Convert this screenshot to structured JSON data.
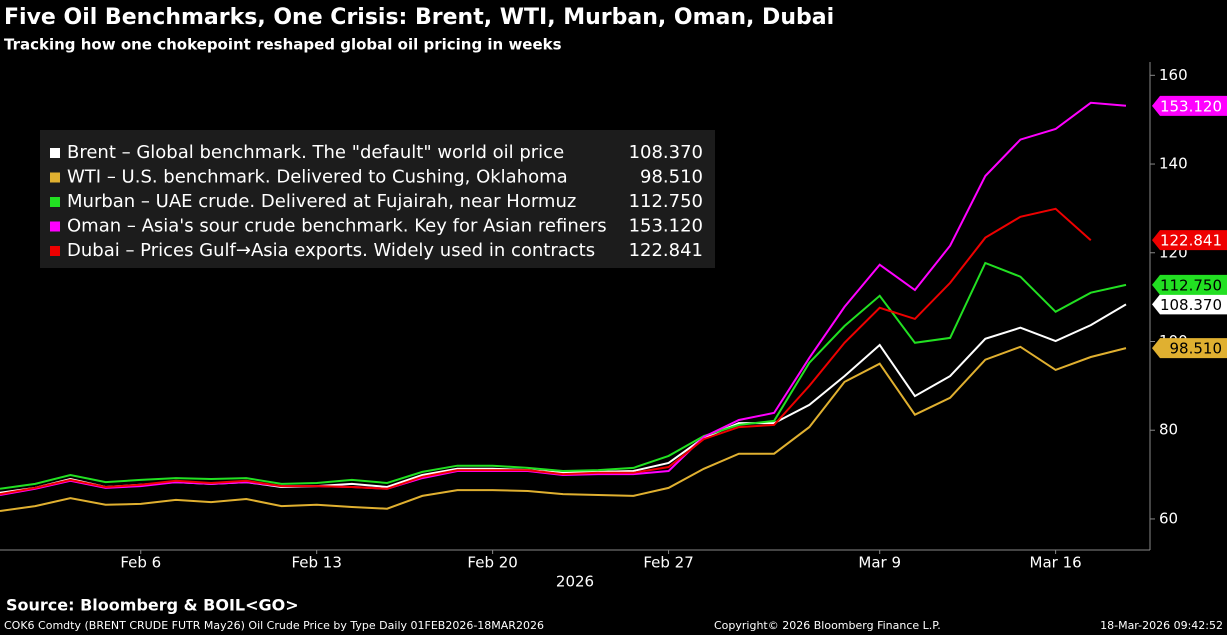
{
  "chart_data": {
    "type": "line",
    "title": "Five Oil Benchmarks, One Crisis: Brent, WTI, Murban, Oman, Dubai",
    "subtitle": "Tracking how one chokepoint reshaped global oil pricing in weeks",
    "xlabel": "2026",
    "categories": [
      null,
      null,
      null,
      null,
      "Feb 6",
      null,
      null,
      null,
      null,
      "Feb 13",
      null,
      null,
      null,
      null,
      "Feb 20",
      null,
      null,
      null,
      null,
      "Feb 27",
      null,
      null,
      null,
      null,
      null,
      "Mar 9",
      null,
      null,
      null,
      null,
      "Mar 16",
      null,
      null
    ],
    "ylim": [
      53,
      163
    ],
    "yticks": [
      60,
      80,
      100,
      120,
      140,
      160
    ],
    "grid": false,
    "series": [
      {
        "name": "Brent – Global benchmark. The \"default\" world oil price",
        "color": "#ffffff",
        "last_value_label": "108.370",
        "values": [
          65.9,
          67.0,
          69.0,
          67.2,
          67.7,
          68.3,
          67.9,
          68.3,
          67.2,
          67.4,
          67.9,
          67.2,
          69.9,
          71.3,
          71.3,
          71.0,
          70.4,
          70.6,
          70.8,
          72.6,
          78.3,
          81.6,
          81.6,
          85.7,
          92.2,
          99.2,
          87.7,
          92.2,
          100.6,
          103.1,
          100.1,
          103.7,
          108.37
        ]
      },
      {
        "name": "WTI – U.S. benchmark. Delivered to Cushing, Oklahoma",
        "color": "#e0b030",
        "last_value_label": "98.510",
        "values": [
          61.8,
          62.9,
          64.7,
          63.2,
          63.4,
          64.3,
          63.8,
          64.5,
          62.9,
          63.2,
          62.7,
          62.3,
          65.2,
          66.5,
          66.5,
          66.3,
          65.6,
          65.4,
          65.2,
          67.0,
          71.3,
          74.7,
          74.7,
          80.7,
          90.9,
          95.0,
          83.5,
          87.3,
          95.9,
          98.8,
          93.6,
          96.5,
          98.51
        ]
      },
      {
        "name": "Murban – UAE crude. Delivered at Fujairah, near Hormuz",
        "color": "#22e022",
        "last_value_label": "112.750",
        "values": [
          66.8,
          67.9,
          69.9,
          68.3,
          68.8,
          69.2,
          69.0,
          69.2,
          67.9,
          68.1,
          68.8,
          68.1,
          70.6,
          72.0,
          72.0,
          71.5,
          70.8,
          71.0,
          71.5,
          74.2,
          78.7,
          81.2,
          82.1,
          95.2,
          103.5,
          110.3,
          99.7,
          100.8,
          117.7,
          114.6,
          106.7,
          111.0,
          112.75
        ]
      },
      {
        "name": "Oman – Asia's sour crude benchmark. Key for Asian refiners",
        "color": "#ff00ff",
        "last_value_label": "153.120",
        "values": [
          65.4,
          66.8,
          68.6,
          67.0,
          67.4,
          68.3,
          67.9,
          68.3,
          67.4,
          67.4,
          67.2,
          66.8,
          69.2,
          70.8,
          70.8,
          70.8,
          69.9,
          70.1,
          70.1,
          70.8,
          78.5,
          82.3,
          83.9,
          96.3,
          107.8,
          117.3,
          111.6,
          121.6,
          137.3,
          145.5,
          147.9,
          153.8,
          153.12
        ]
      },
      {
        "name": "Dubai – Prices Gulf→Asia exports. Widely used in contracts",
        "color": "#ee0000",
        "last_value_label": "122.841",
        "values": [
          65.6,
          67.0,
          68.8,
          67.2,
          67.7,
          68.6,
          68.1,
          68.6,
          67.4,
          67.4,
          67.2,
          66.8,
          69.5,
          71.0,
          71.0,
          71.0,
          70.1,
          70.4,
          70.4,
          71.7,
          78.0,
          80.7,
          81.2,
          90.0,
          99.7,
          107.6,
          105.1,
          113.2,
          123.4,
          128.1,
          129.9,
          122.841,
          null
        ]
      }
    ]
  },
  "footer": {
    "source": "Source: Bloomberg & BOIL<GO>",
    "ticker": "COK6 Comdty (BRENT CRUDE FUTR  May26) Oil Crude Price by Type Daily 01FEB2026-18MAR2026",
    "copyright": "Copyright© 2026 Bloomberg Finance L.P.",
    "timestamp": "18-Mar-2026 09:42:52"
  }
}
